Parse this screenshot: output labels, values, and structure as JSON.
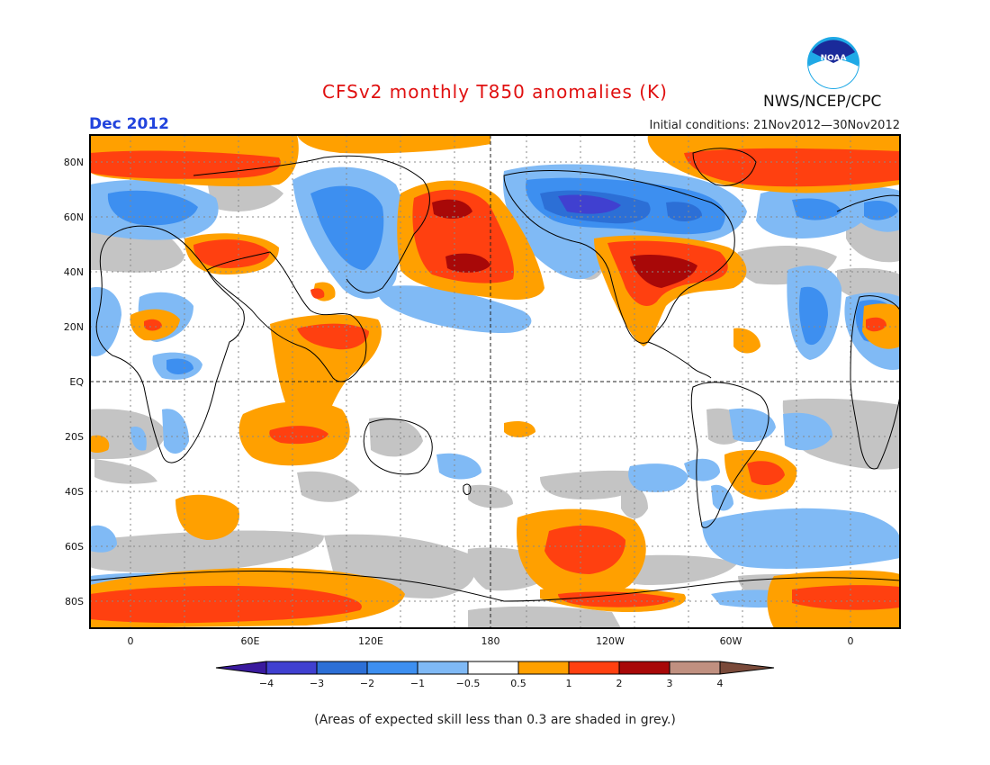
{
  "header": {
    "title": "CFSv2 monthly T850 anomalies (K)",
    "month": "Dec 2012",
    "initial_conditions": "Initial conditions: 21Nov2012—30Nov2012",
    "agency": "NWS/NCEP/CPC",
    "logo_text": "NOAA"
  },
  "map": {
    "lat_labels": [
      "80N",
      "60N",
      "40N",
      "20N",
      "EQ",
      "20S",
      "40S",
      "60S",
      "80S"
    ],
    "lon_labels": [
      "0",
      "60E",
      "120E",
      "180",
      "120W",
      "60W",
      "0"
    ]
  },
  "colorbar": {
    "labels": [
      "−4",
      "−3",
      "−2",
      "−1",
      "−0.5",
      "0.5",
      "1",
      "2",
      "3",
      "4"
    ],
    "colors": [
      "#3a1a9e",
      "#4040d0",
      "#2c6fd6",
      "#3d8ff0",
      "#7fb9f5",
      "#ffffff",
      "#ffa000",
      "#ff4010",
      "#a80808",
      "#c09080",
      "#7a4a3a"
    ],
    "grey": "#c4c4c4"
  },
  "footnote": "(Areas of expected skill less than 0.3 are shaded in grey.)"
}
